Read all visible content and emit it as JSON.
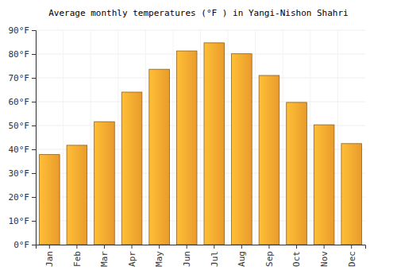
{
  "chart_data": {
    "type": "bar",
    "title": "Average monthly temperatures (°F ) in Yangi-Nishon Shahri",
    "categories": [
      "Jan",
      "Feb",
      "Mar",
      "Apr",
      "May",
      "Jun",
      "Jul",
      "Aug",
      "Sep",
      "Oct",
      "Nov",
      "Dec"
    ],
    "values": [
      37.8,
      41.7,
      51.6,
      64.0,
      73.6,
      81.3,
      84.7,
      80.1,
      71.0,
      59.7,
      50.3,
      42.4
    ],
    "color": "#ffa930",
    "ylim": [
      0,
      90
    ],
    "yticks": [
      {
        "value": 0,
        "label": "0°F"
      },
      {
        "value": 10,
        "label": "10°F"
      },
      {
        "value": 20,
        "label": "20°F"
      },
      {
        "value": 30,
        "label": "30°F"
      },
      {
        "value": 40,
        "label": "40°F"
      },
      {
        "value": 50,
        "label": "50°F"
      },
      {
        "value": 60,
        "label": "60°F"
      },
      {
        "value": 70,
        "label": "70°F"
      },
      {
        "value": 80,
        "label": "80°F"
      },
      {
        "value": 90,
        "label": "90°F"
      }
    ],
    "grid": true
  }
}
